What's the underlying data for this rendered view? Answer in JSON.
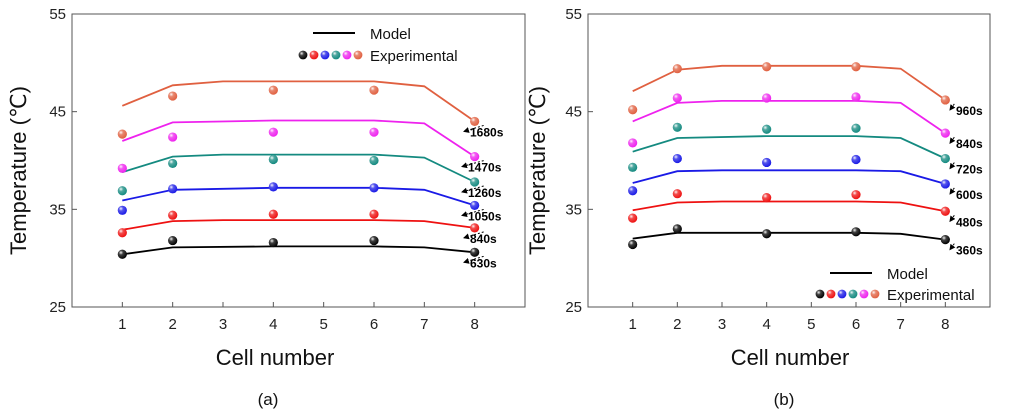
{
  "chart_data": [
    {
      "type": "line",
      "panel_label": "(a)",
      "xlabel": "Cell number",
      "ylabel": "Temperature (℃)",
      "xlim": [
        0,
        9
      ],
      "ylim": [
        25,
        55
      ],
      "x_ticks": [
        "1",
        "2",
        "3",
        "4",
        "5",
        "6",
        "7",
        "8"
      ],
      "y_ticks": [
        "25",
        "35",
        "45",
        "55"
      ],
      "legend": {
        "position": "top-right",
        "model_label": "Model",
        "experimental_label": "Experimental"
      },
      "series": [
        {
          "name": "630s",
          "color": "#000000",
          "model": [
            [
              1,
              30.4
            ],
            [
              2,
              31.1
            ],
            [
              4,
              31.2
            ],
            [
              6,
              31.2
            ],
            [
              7,
              31.1
            ],
            [
              8,
              30.6
            ]
          ],
          "experimental": [
            [
              1,
              30.4
            ],
            [
              2,
              31.8
            ],
            [
              4,
              31.6
            ],
            [
              6,
              31.8
            ],
            [
              8,
              30.6
            ]
          ]
        },
        {
          "name": "840s",
          "color": "#ee1111",
          "model": [
            [
              1,
              32.9
            ],
            [
              2,
              33.8
            ],
            [
              3,
              33.9
            ],
            [
              6,
              33.9
            ],
            [
              7,
              33.8
            ],
            [
              8,
              33.1
            ]
          ],
          "experimental": [
            [
              1,
              32.6
            ],
            [
              2,
              34.4
            ],
            [
              4,
              34.5
            ],
            [
              6,
              34.5
            ],
            [
              8,
              33.1
            ]
          ]
        },
        {
          "name": "1050s",
          "color": "#1a1ae6",
          "model": [
            [
              1,
              35.9
            ],
            [
              2,
              37.0
            ],
            [
              4,
              37.2
            ],
            [
              6,
              37.2
            ],
            [
              7,
              37.0
            ],
            [
              8,
              35.4
            ]
          ],
          "experimental": [
            [
              1,
              34.9
            ],
            [
              2,
              37.1
            ],
            [
              4,
              37.3
            ],
            [
              6,
              37.2
            ],
            [
              8,
              35.4
            ]
          ]
        },
        {
          "name": "1260s",
          "color": "#148a80",
          "model": [
            [
              1,
              38.8
            ],
            [
              2,
              40.4
            ],
            [
              3,
              40.6
            ],
            [
              6,
              40.6
            ],
            [
              7,
              40.3
            ],
            [
              8,
              37.8
            ]
          ],
          "experimental": [
            [
              1,
              36.9
            ],
            [
              2,
              39.7
            ],
            [
              4,
              40.1
            ],
            [
              6,
              40.0
            ],
            [
              8,
              37.8
            ]
          ]
        },
        {
          "name": "1470s",
          "color": "#ee22ee",
          "model": [
            [
              1,
              42.0
            ],
            [
              2,
              43.9
            ],
            [
              4,
              44.1
            ],
            [
              6,
              44.1
            ],
            [
              7,
              43.8
            ],
            [
              8,
              40.4
            ]
          ],
          "experimental": [
            [
              1,
              39.2
            ],
            [
              2,
              42.4
            ],
            [
              4,
              42.9
            ],
            [
              6,
              42.9
            ],
            [
              8,
              40.4
            ]
          ]
        },
        {
          "name": "1680s",
          "color": "#e06040",
          "model": [
            [
              1,
              45.6
            ],
            [
              2,
              47.7
            ],
            [
              3,
              48.1
            ],
            [
              6,
              48.1
            ],
            [
              7,
              47.6
            ],
            [
              8,
              44.0
            ]
          ],
          "experimental": [
            [
              1,
              42.7
            ],
            [
              2,
              46.6
            ],
            [
              4,
              47.2
            ],
            [
              6,
              47.2
            ],
            [
              8,
              44.0
            ]
          ]
        }
      ]
    },
    {
      "type": "line",
      "panel_label": "(b)",
      "xlabel": "Cell number",
      "ylabel": "Temperature (℃)",
      "xlim": [
        0,
        9
      ],
      "ylim": [
        25,
        55
      ],
      "x_ticks": [
        "1",
        "2",
        "3",
        "4",
        "5",
        "6",
        "7",
        "8"
      ],
      "y_ticks": [
        "25",
        "35",
        "45",
        "55"
      ],
      "legend": {
        "position": "bottom-right",
        "model_label": "Model",
        "experimental_label": "Experimental"
      },
      "series": [
        {
          "name": "360s",
          "color": "#000000",
          "model": [
            [
              1,
              32.0
            ],
            [
              2,
              32.6
            ],
            [
              4,
              32.6
            ],
            [
              6,
              32.6
            ],
            [
              7,
              32.5
            ],
            [
              8,
              31.9
            ]
          ],
          "experimental": [
            [
              1,
              31.4
            ],
            [
              2,
              33.0
            ],
            [
              4,
              32.5
            ],
            [
              6,
              32.7
            ],
            [
              8,
              31.9
            ]
          ]
        },
        {
          "name": "480s",
          "color": "#ee1111",
          "model": [
            [
              1,
              34.9
            ],
            [
              2,
              35.7
            ],
            [
              3,
              35.8
            ],
            [
              6,
              35.8
            ],
            [
              7,
              35.7
            ],
            [
              8,
              34.8
            ]
          ],
          "experimental": [
            [
              1,
              34.1
            ],
            [
              2,
              36.6
            ],
            [
              4,
              36.2
            ],
            [
              6,
              36.5
            ],
            [
              8,
              34.8
            ]
          ]
        },
        {
          "name": "600s",
          "color": "#1a1ae6",
          "model": [
            [
              1,
              37.7
            ],
            [
              2,
              38.9
            ],
            [
              3,
              39.0
            ],
            [
              6,
              39.0
            ],
            [
              7,
              38.9
            ],
            [
              8,
              37.6
            ]
          ],
          "experimental": [
            [
              1,
              36.9
            ],
            [
              2,
              40.2
            ],
            [
              4,
              39.8
            ],
            [
              6,
              40.1
            ],
            [
              8,
              37.6
            ]
          ]
        },
        {
          "name": "720s",
          "color": "#148a80",
          "model": [
            [
              1,
              40.9
            ],
            [
              2,
              42.3
            ],
            [
              4,
              42.5
            ],
            [
              6,
              42.5
            ],
            [
              7,
              42.3
            ],
            [
              8,
              40.2
            ]
          ],
          "experimental": [
            [
              1,
              39.3
            ],
            [
              2,
              43.4
            ],
            [
              4,
              43.2
            ],
            [
              6,
              43.3
            ],
            [
              8,
              40.2
            ]
          ]
        },
        {
          "name": "840s",
          "color": "#ee22ee",
          "model": [
            [
              1,
              44.0
            ],
            [
              2,
              45.9
            ],
            [
              3,
              46.1
            ],
            [
              6,
              46.1
            ],
            [
              7,
              45.9
            ],
            [
              8,
              42.8
            ]
          ],
          "experimental": [
            [
              1,
              41.8
            ],
            [
              2,
              46.4
            ],
            [
              4,
              46.4
            ],
            [
              6,
              46.5
            ],
            [
              8,
              42.8
            ]
          ]
        },
        {
          "name": "960s",
          "color": "#e06040",
          "model": [
            [
              1,
              47.1
            ],
            [
              2,
              49.3
            ],
            [
              3,
              49.7
            ],
            [
              6,
              49.7
            ],
            [
              7,
              49.4
            ],
            [
              8,
              46.2
            ]
          ],
          "experimental": [
            [
              1,
              45.2
            ],
            [
              2,
              49.4
            ],
            [
              4,
              49.6
            ],
            [
              6,
              49.6
            ],
            [
              8,
              46.2
            ]
          ]
        }
      ]
    }
  ]
}
